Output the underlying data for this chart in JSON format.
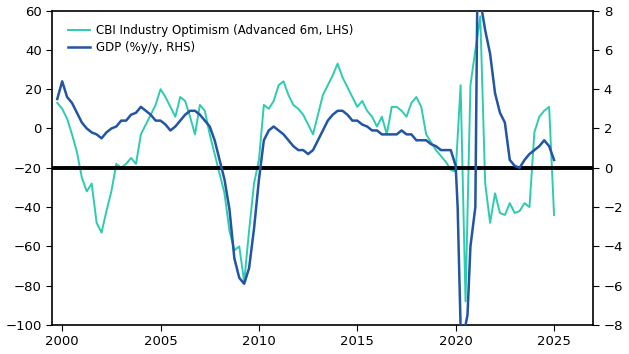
{
  "cbi_color": "#2dcbb0",
  "gdp_color": "#2255a4",
  "hline_color": "black",
  "hline_y": -20,
  "xlim": [
    1999.5,
    2027
  ],
  "ylim_lhs": [
    -100,
    60
  ],
  "ylim_rhs": [
    -8,
    8
  ],
  "yticks_lhs": [
    -100,
    -80,
    -60,
    -40,
    -20,
    0,
    20,
    40,
    60
  ],
  "yticks_rhs": [
    -8,
    -6,
    -4,
    -2,
    0,
    2,
    4,
    6,
    8
  ],
  "xticks": [
    2000,
    2005,
    2010,
    2015,
    2020,
    2025
  ],
  "legend_labels": [
    "CBI Industry Optimism (Advanced 6m, LHS)",
    "GDP (%y/y, RHS)"
  ],
  "cbi_data": [
    [
      1999.75,
      13
    ],
    [
      2000.0,
      10
    ],
    [
      2000.25,
      5
    ],
    [
      2000.5,
      -3
    ],
    [
      2000.75,
      -12
    ],
    [
      2001.0,
      -25
    ],
    [
      2001.25,
      -32
    ],
    [
      2001.5,
      -28
    ],
    [
      2001.75,
      -48
    ],
    [
      2002.0,
      -53
    ],
    [
      2002.25,
      -42
    ],
    [
      2002.5,
      -32
    ],
    [
      2002.75,
      -18
    ],
    [
      2003.0,
      -20
    ],
    [
      2003.25,
      -18
    ],
    [
      2003.5,
      -15
    ],
    [
      2003.75,
      -18
    ],
    [
      2004.0,
      -3
    ],
    [
      2004.25,
      2
    ],
    [
      2004.5,
      7
    ],
    [
      2004.75,
      12
    ],
    [
      2005.0,
      20
    ],
    [
      2005.25,
      16
    ],
    [
      2005.5,
      11
    ],
    [
      2005.75,
      6
    ],
    [
      2006.0,
      16
    ],
    [
      2006.25,
      14
    ],
    [
      2006.5,
      6
    ],
    [
      2006.75,
      -3
    ],
    [
      2007.0,
      12
    ],
    [
      2007.25,
      9
    ],
    [
      2007.5,
      -3
    ],
    [
      2007.75,
      -13
    ],
    [
      2008.0,
      -23
    ],
    [
      2008.25,
      -33
    ],
    [
      2008.5,
      -52
    ],
    [
      2008.75,
      -62
    ],
    [
      2009.0,
      -60
    ],
    [
      2009.25,
      -78
    ],
    [
      2009.5,
      -52
    ],
    [
      2009.75,
      -28
    ],
    [
      2010.0,
      -16
    ],
    [
      2010.25,
      12
    ],
    [
      2010.5,
      10
    ],
    [
      2010.75,
      14
    ],
    [
      2011.0,
      22
    ],
    [
      2011.25,
      24
    ],
    [
      2011.5,
      17
    ],
    [
      2011.75,
      12
    ],
    [
      2012.0,
      10
    ],
    [
      2012.25,
      7
    ],
    [
      2012.5,
      2
    ],
    [
      2012.75,
      -3
    ],
    [
      2013.0,
      7
    ],
    [
      2013.25,
      17
    ],
    [
      2013.5,
      22
    ],
    [
      2013.75,
      27
    ],
    [
      2014.0,
      33
    ],
    [
      2014.25,
      26
    ],
    [
      2014.5,
      21
    ],
    [
      2014.75,
      16
    ],
    [
      2015.0,
      11
    ],
    [
      2015.25,
      14
    ],
    [
      2015.5,
      9
    ],
    [
      2015.75,
      6
    ],
    [
      2016.0,
      1
    ],
    [
      2016.25,
      6
    ],
    [
      2016.5,
      -3
    ],
    [
      2016.75,
      11
    ],
    [
      2017.0,
      11
    ],
    [
      2017.25,
      9
    ],
    [
      2017.5,
      6
    ],
    [
      2017.75,
      13
    ],
    [
      2018.0,
      16
    ],
    [
      2018.25,
      11
    ],
    [
      2018.5,
      -3
    ],
    [
      2018.75,
      -7
    ],
    [
      2019.0,
      -11
    ],
    [
      2019.25,
      -14
    ],
    [
      2019.5,
      -17
    ],
    [
      2019.75,
      -21
    ],
    [
      2020.0,
      -22
    ],
    [
      2020.25,
      22
    ],
    [
      2020.5,
      -88
    ],
    [
      2020.75,
      22
    ],
    [
      2021.0,
      40
    ],
    [
      2021.25,
      57
    ],
    [
      2021.5,
      -28
    ],
    [
      2021.75,
      -48
    ],
    [
      2022.0,
      -33
    ],
    [
      2022.25,
      -43
    ],
    [
      2022.5,
      -44
    ],
    [
      2022.75,
      -38
    ],
    [
      2023.0,
      -43
    ],
    [
      2023.25,
      -42
    ],
    [
      2023.5,
      -38
    ],
    [
      2023.75,
      -40
    ],
    [
      2024.0,
      -2
    ],
    [
      2024.25,
      6
    ],
    [
      2024.5,
      9
    ],
    [
      2024.75,
      11
    ],
    [
      2025.0,
      -44
    ]
  ],
  "gdp_data": [
    [
      1999.75,
      3.5
    ],
    [
      2000.0,
      4.4
    ],
    [
      2000.25,
      3.6
    ],
    [
      2000.5,
      3.3
    ],
    [
      2000.75,
      2.8
    ],
    [
      2001.0,
      2.3
    ],
    [
      2001.25,
      2.0
    ],
    [
      2001.5,
      1.8
    ],
    [
      2001.75,
      1.7
    ],
    [
      2002.0,
      1.5
    ],
    [
      2002.25,
      1.8
    ],
    [
      2002.5,
      2.0
    ],
    [
      2002.75,
      2.1
    ],
    [
      2003.0,
      2.4
    ],
    [
      2003.25,
      2.4
    ],
    [
      2003.5,
      2.7
    ],
    [
      2003.75,
      2.8
    ],
    [
      2004.0,
      3.1
    ],
    [
      2004.25,
      2.9
    ],
    [
      2004.5,
      2.7
    ],
    [
      2004.75,
      2.4
    ],
    [
      2005.0,
      2.4
    ],
    [
      2005.25,
      2.2
    ],
    [
      2005.5,
      1.9
    ],
    [
      2005.75,
      2.1
    ],
    [
      2006.0,
      2.4
    ],
    [
      2006.25,
      2.7
    ],
    [
      2006.5,
      2.9
    ],
    [
      2006.75,
      2.9
    ],
    [
      2007.0,
      2.7
    ],
    [
      2007.25,
      2.4
    ],
    [
      2007.5,
      2.1
    ],
    [
      2007.75,
      1.4
    ],
    [
      2008.0,
      0.4
    ],
    [
      2008.25,
      -0.6
    ],
    [
      2008.5,
      -2.1
    ],
    [
      2008.75,
      -4.6
    ],
    [
      2009.0,
      -5.6
    ],
    [
      2009.25,
      -5.9
    ],
    [
      2009.5,
      -5.1
    ],
    [
      2009.75,
      -3.1
    ],
    [
      2010.0,
      -0.6
    ],
    [
      2010.25,
      1.4
    ],
    [
      2010.5,
      1.9
    ],
    [
      2010.75,
      2.1
    ],
    [
      2011.0,
      1.9
    ],
    [
      2011.25,
      1.7
    ],
    [
      2011.5,
      1.4
    ],
    [
      2011.75,
      1.1
    ],
    [
      2012.0,
      0.9
    ],
    [
      2012.25,
      0.9
    ],
    [
      2012.5,
      0.7
    ],
    [
      2012.75,
      0.9
    ],
    [
      2013.0,
      1.4
    ],
    [
      2013.25,
      1.9
    ],
    [
      2013.5,
      2.4
    ],
    [
      2013.75,
      2.7
    ],
    [
      2014.0,
      2.9
    ],
    [
      2014.25,
      2.9
    ],
    [
      2014.5,
      2.7
    ],
    [
      2014.75,
      2.4
    ],
    [
      2015.0,
      2.4
    ],
    [
      2015.25,
      2.2
    ],
    [
      2015.5,
      2.1
    ],
    [
      2015.75,
      1.9
    ],
    [
      2016.0,
      1.9
    ],
    [
      2016.25,
      1.7
    ],
    [
      2016.5,
      1.7
    ],
    [
      2016.75,
      1.7
    ],
    [
      2017.0,
      1.7
    ],
    [
      2017.25,
      1.9
    ],
    [
      2017.5,
      1.7
    ],
    [
      2017.75,
      1.7
    ],
    [
      2018.0,
      1.4
    ],
    [
      2018.25,
      1.4
    ],
    [
      2018.5,
      1.4
    ],
    [
      2018.75,
      1.2
    ],
    [
      2019.0,
      1.1
    ],
    [
      2019.25,
      0.9
    ],
    [
      2019.5,
      0.9
    ],
    [
      2019.75,
      0.9
    ],
    [
      2020.0,
      0.1
    ],
    [
      2020.1,
      -2.0
    ],
    [
      2020.25,
      -8.1
    ],
    [
      2020.5,
      -8.0
    ],
    [
      2020.6,
      -7.5
    ],
    [
      2020.75,
      -4.0
    ],
    [
      2021.0,
      -2.0
    ],
    [
      2021.1,
      8.7
    ],
    [
      2021.25,
      8.5
    ],
    [
      2021.5,
      7.0
    ],
    [
      2021.75,
      5.8
    ],
    [
      2022.0,
      3.8
    ],
    [
      2022.25,
      2.8
    ],
    [
      2022.5,
      2.3
    ],
    [
      2022.75,
      0.4
    ],
    [
      2023.0,
      0.1
    ],
    [
      2023.25,
      0.0
    ],
    [
      2023.5,
      0.4
    ],
    [
      2023.75,
      0.7
    ],
    [
      2024.0,
      0.9
    ],
    [
      2024.25,
      1.1
    ],
    [
      2024.5,
      1.4
    ],
    [
      2024.75,
      1.1
    ],
    [
      2025.0,
      0.4
    ]
  ]
}
